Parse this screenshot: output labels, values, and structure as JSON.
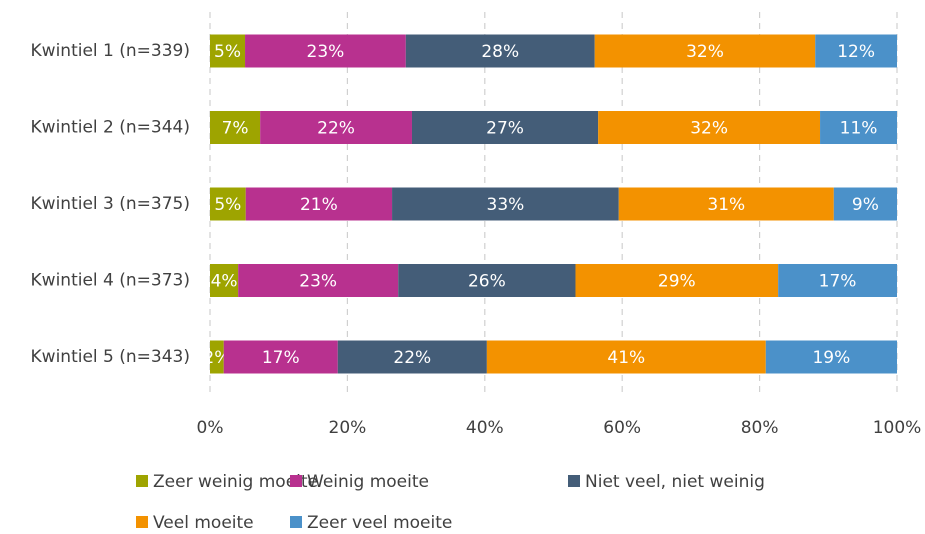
{
  "chart_data": {
    "type": "stacked_barh",
    "categories": [
      "Kwintiel 1 (n=339)",
      "Kwintiel 2 (n=344)",
      "Kwintiel 3 (n=375)",
      "Kwintiel 4 (n=373)",
      "Kwintiel 5 (n=343)"
    ],
    "series": [
      {
        "name": "Zeer weinig moeite",
        "color": "#9ea400",
        "values": [
          5.1,
          7.3,
          5.2,
          4.1,
          2.0
        ],
        "value_labels": [
          "5%",
          "7%",
          "5%",
          "4%",
          "2%"
        ]
      },
      {
        "name": "Weinig moeite",
        "color": "#b8318f",
        "values": [
          23.4,
          22.1,
          21.3,
          23.3,
          16.6
        ],
        "value_labels": [
          "23%",
          "22%",
          "21%",
          "23%",
          "17%"
        ]
      },
      {
        "name": "Niet veel, niet weinig",
        "color": "#445d78",
        "values": [
          27.5,
          27.1,
          33.0,
          25.8,
          21.7
        ],
        "value_labels": [
          "28%",
          "27%",
          "33%",
          "26%",
          "22%"
        ]
      },
      {
        "name": "Veel moeite",
        "color": "#f39200",
        "values": [
          32.1,
          32.3,
          31.3,
          29.5,
          40.6
        ],
        "value_labels": [
          "32%",
          "32%",
          "31%",
          "29%",
          "41%"
        ]
      },
      {
        "name": "Zeer veel moeite",
        "color": "#4b91c9",
        "values": [
          11.9,
          11.2,
          9.2,
          17.3,
          19.1
        ],
        "value_labels": [
          "12%",
          "11%",
          "9%",
          "17%",
          "19%"
        ]
      }
    ],
    "xlim": [
      0,
      100
    ],
    "xticks": [
      {
        "value": 0,
        "label": "0%"
      },
      {
        "value": 20,
        "label": "20%"
      },
      {
        "value": 40,
        "label": "40%"
      },
      {
        "value": 60,
        "label": "60%"
      },
      {
        "value": 80,
        "label": "80%"
      },
      {
        "value": 100,
        "label": "100%"
      }
    ],
    "grid": true,
    "legend": "bottom"
  }
}
